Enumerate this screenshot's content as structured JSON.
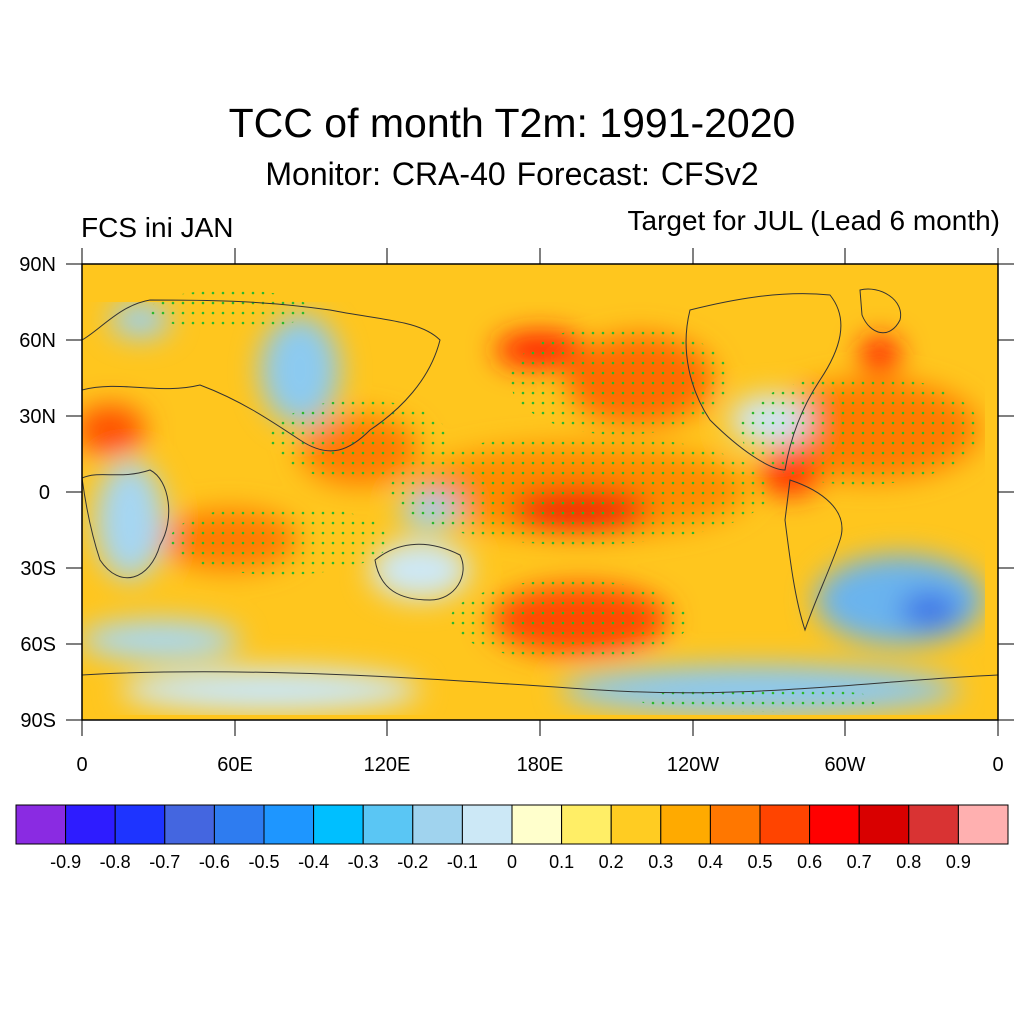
{
  "title": "TCC of month T2m: 1991-2020",
  "subtitle": "Monitor: CRA-40   Forecast: CFSv2",
  "left_label": "FCS ini JAN",
  "right_label": "Target for JUL (Lead 6 month)",
  "lat_ticks": [
    "90N",
    "60N",
    "30N",
    "0",
    "30S",
    "60S",
    "90S"
  ],
  "lon_ticks": [
    "0",
    "60E",
    "120E",
    "180E",
    "120W",
    "60W",
    "0"
  ],
  "colorbar": {
    "labels": [
      "-0.9",
      "-0.8",
      "-0.7",
      "-0.6",
      "-0.5",
      "-0.4",
      "-0.3",
      "-0.2",
      "-0.1",
      "0",
      "0.1",
      "0.2",
      "0.3",
      "0.4",
      "0.5",
      "0.6",
      "0.7",
      "0.8",
      "0.9"
    ],
    "colors": [
      "#8a2be2",
      "#2e1cff",
      "#1e34ff",
      "#4466e0",
      "#2e7cf0",
      "#1e96ff",
      "#00bfff",
      "#5ac6f4",
      "#a0d3ee",
      "#cce8f6",
      "#ffffcc",
      "#ffee66",
      "#ffcc22",
      "#ffaa00",
      "#ff7700",
      "#ff4400",
      "#ff0000",
      "#d90000",
      "#d93333",
      "#ffb0b0"
    ]
  }
}
